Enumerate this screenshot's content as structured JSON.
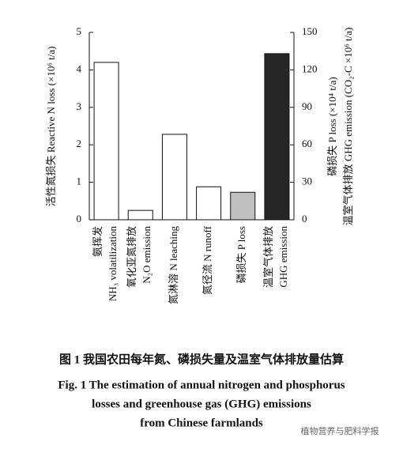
{
  "chart_data": {
    "type": "bar",
    "categories": [
      [
        "氨挥发",
        "NH₃ volatilization"
      ],
      [
        "氧化亚氮排放",
        "N₂O emission"
      ],
      [
        "氮淋溶 N leaching"
      ],
      [
        "氮径流 N runoff"
      ],
      [
        "磷损失 P loss"
      ],
      [
        "温室气体排放",
        "GHG emission"
      ]
    ],
    "values": [
      4.2,
      0.25,
      2.28,
      0.88,
      22,
      133
    ],
    "axes": [
      "y",
      "y",
      "y",
      "y",
      "y2",
      "y2"
    ],
    "colors": [
      "#ffffff",
      "#ffffff",
      "#ffffff",
      "#ffffff",
      "#c0c0c0",
      "#262626"
    ],
    "ylim": [
      0,
      5
    ],
    "yticks": [
      0,
      1,
      2,
      3,
      4,
      5
    ],
    "y2lim": [
      0,
      150
    ],
    "y2ticks": [
      0,
      30,
      60,
      90,
      120,
      150
    ],
    "ylabel": "活性氮损失 Reactive N loss (×10⁶ t/a)",
    "y2label": [
      "磷损失 P loss (×10⁴ t/a)",
      "温室气体排放 GHG emission (CO₂-C ×10⁶ t/a)"
    ],
    "caption": [
      "图 1   我国农田每年氮、磷损失量及温室气体排放量估算",
      "Fig. 1   The estimation of annual nitrogen and phosphorus",
      "losses and greenhouse gas (GHG) emissions",
      "from Chinese farmlands"
    ],
    "watermark": "植物营养与肥料学报"
  }
}
